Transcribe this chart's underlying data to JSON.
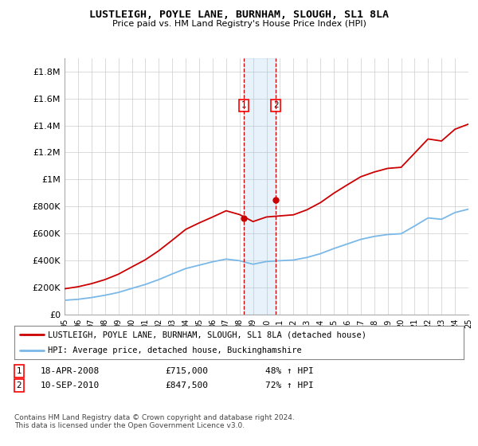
{
  "title": "LUSTLEIGH, POYLE LANE, BURNHAM, SLOUGH, SL1 8LA",
  "subtitle": "Price paid vs. HM Land Registry's House Price Index (HPI)",
  "legend_line1": "LUSTLEIGH, POYLE LANE, BURNHAM, SLOUGH, SL1 8LA (detached house)",
  "legend_line2": "HPI: Average price, detached house, Buckinghamshire",
  "footer": "Contains HM Land Registry data © Crown copyright and database right 2024.\nThis data is licensed under the Open Government Licence v3.0.",
  "annotation1_label": "1",
  "annotation1_date": "18-APR-2008",
  "annotation1_price": "£715,000",
  "annotation1_hpi": "48% ↑ HPI",
  "annotation2_label": "2",
  "annotation2_date": "10-SEP-2010",
  "annotation2_price": "£847,500",
  "annotation2_hpi": "72% ↑ HPI",
  "sale1_year": 2008.3,
  "sale1_value": 715000,
  "sale2_year": 2010.7,
  "sale2_value": 847500,
  "hpi_color": "#7ab8e8",
  "price_color": "#cc0000",
  "marker_color": "#cc0000",
  "ylim": [
    0,
    1900000
  ],
  "yticks": [
    0,
    200000,
    400000,
    600000,
    800000,
    1000000,
    1200000,
    1400000,
    1600000,
    1800000
  ],
  "ytick_labels": [
    "£0",
    "£200K",
    "£400K",
    "£600K",
    "£800K",
    "£1M",
    "£1.2M",
    "£1.4M",
    "£1.6M",
    "£1.8M"
  ],
  "xstart": 1995,
  "xend": 2025,
  "years_hpi": [
    1995,
    1996,
    1997,
    1998,
    1999,
    2000,
    2001,
    2002,
    2003,
    2004,
    2005,
    2006,
    2007,
    2008,
    2009,
    2010,
    2011,
    2012,
    2013,
    2014,
    2015,
    2016,
    2017,
    2018,
    2019,
    2020,
    2021,
    2022,
    2023,
    2024,
    2025
  ],
  "hpi_values": [
    105000,
    112000,
    125000,
    142000,
    163000,
    193000,
    222000,
    258000,
    300000,
    340000,
    365000,
    390000,
    410000,
    398000,
    372000,
    392000,
    398000,
    403000,
    422000,
    450000,
    488000,
    522000,
    556000,
    578000,
    592000,
    598000,
    655000,
    715000,
    705000,
    755000,
    780000
  ],
  "price_years": [
    1995,
    1996,
    1997,
    1998,
    1999,
    2000,
    2001,
    2002,
    2003,
    2004,
    2005,
    2006,
    2007,
    2008,
    2009,
    2010,
    2011,
    2012,
    2013,
    2014,
    2015,
    2016,
    2017,
    2018,
    2019,
    2020,
    2021,
    2022,
    2023,
    2024,
    2025
  ],
  "price_values": [
    190000,
    205000,
    228000,
    258000,
    298000,
    352000,
    405000,
    472000,
    550000,
    630000,
    678000,
    722000,
    768000,
    740000,
    688000,
    722000,
    730000,
    738000,
    775000,
    828000,
    898000,
    960000,
    1020000,
    1055000,
    1082000,
    1090000,
    1195000,
    1300000,
    1285000,
    1372000,
    1410000
  ]
}
